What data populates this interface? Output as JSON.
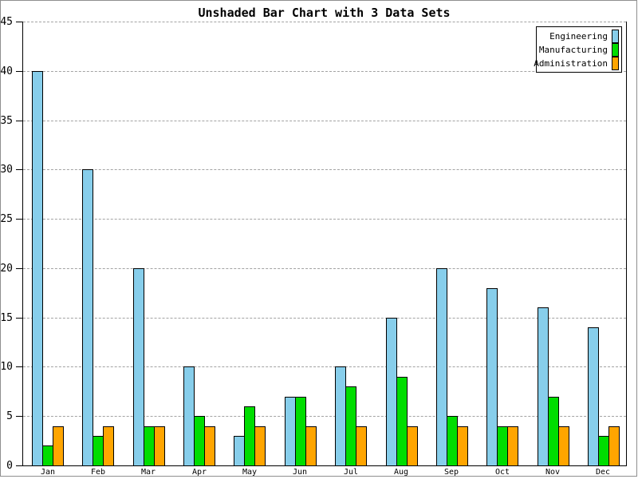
{
  "title": "Unshaded Bar Chart with 3 Data Sets",
  "colors": {
    "background": "#ffffff",
    "axis": "#000000",
    "grid": "#a3a3a3",
    "frame": "#8f8f8f",
    "engineering": "#87CEEB",
    "manufacturing": "#00DD00",
    "administration": "#FFA500"
  },
  "legend": {
    "position": "top-right",
    "entries": [
      "Engineering",
      "Manufacturing",
      "Administration"
    ]
  },
  "chart_data": {
    "type": "bar",
    "title": "Unshaded Bar Chart with 3 Data Sets",
    "categories": [
      "Jan",
      "Feb",
      "Mar",
      "Apr",
      "May",
      "Jun",
      "Jul",
      "Aug",
      "Sep",
      "Oct",
      "Nov",
      "Dec"
    ],
    "series": [
      {
        "name": "Engineering",
        "color": "#87CEEB",
        "values": [
          40,
          30,
          20,
          10,
          3,
          7,
          10,
          15,
          20,
          18,
          16,
          14
        ]
      },
      {
        "name": "Manufacturing",
        "color": "#00DD00",
        "values": [
          2,
          3,
          4,
          5,
          6,
          7,
          8,
          9,
          5,
          4,
          7,
          3
        ]
      },
      {
        "name": "Administration",
        "color": "#FFA500",
        "values": [
          4,
          4,
          4,
          4,
          4,
          4,
          4,
          4,
          4,
          4,
          4,
          4
        ]
      }
    ],
    "xlabel": "",
    "ylabel": "",
    "ylim": [
      0,
      45
    ],
    "ytick_step": 5,
    "yticks": [
      0,
      5,
      10,
      15,
      20,
      25,
      30,
      35,
      40,
      45
    ],
    "grid": "horizontal-dashed",
    "legend_position": "top-right"
  }
}
